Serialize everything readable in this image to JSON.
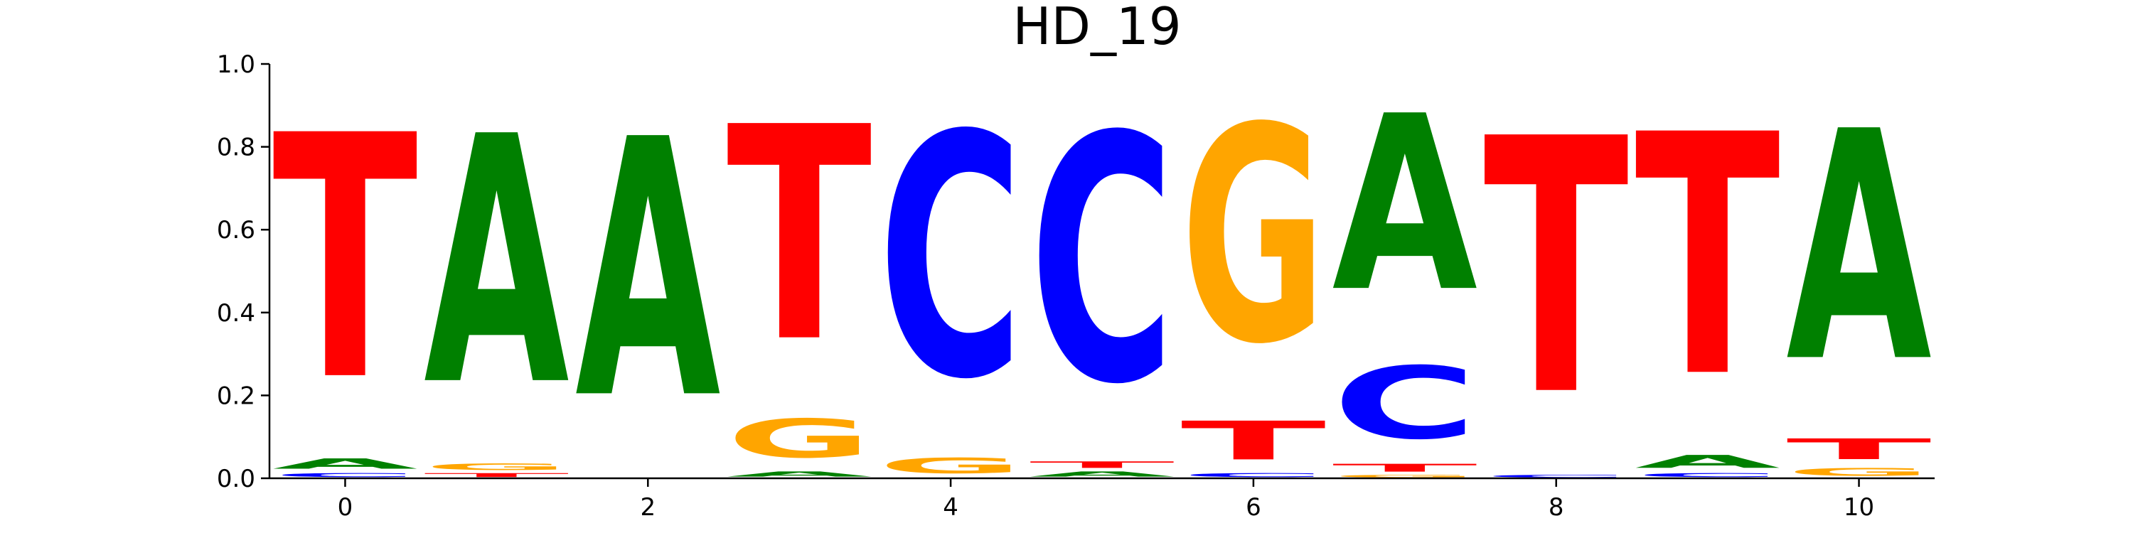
{
  "chart_data": {
    "type": "sequence-logo",
    "title": "HD_19",
    "xlim": [
      -0.5,
      10.5
    ],
    "ylim": [
      0.0,
      1.0
    ],
    "x_ticks": [
      "0",
      "2",
      "4",
      "6",
      "8",
      "10"
    ],
    "y_ticks": [
      "0.0",
      "0.2",
      "0.4",
      "0.6",
      "0.8",
      "1.0"
    ],
    "alphabet_colors": {
      "A": "#008000",
      "C": "#0000ff",
      "G": "#ffa500",
      "T": "#ff0000"
    },
    "positions": [
      {
        "x": 0,
        "stack": [
          {
            "l": "C",
            "v": 0.015
          },
          {
            "l": "A",
            "v": 0.04
          },
          {
            "l": "T",
            "v": 0.945
          }
        ]
      },
      {
        "x": 1,
        "stack": [
          {
            "l": "T",
            "v": 0.015
          },
          {
            "l": "G",
            "v": 0.025
          },
          {
            "l": "A",
            "v": 0.96
          }
        ]
      },
      {
        "x": 2,
        "stack": [
          {
            "l": "A",
            "v": 1.0
          }
        ]
      },
      {
        "x": 3,
        "stack": [
          {
            "l": "A",
            "v": 0.02
          },
          {
            "l": "G",
            "v": 0.15
          },
          {
            "l": "T",
            "v": 0.83
          }
        ]
      },
      {
        "x": 4,
        "stack": [
          {
            "l": "G",
            "v": 0.06
          },
          {
            "l": "C",
            "v": 0.94
          }
        ]
      },
      {
        "x": 5,
        "stack": [
          {
            "l": "A",
            "v": 0.02
          },
          {
            "l": "T",
            "v": 0.025
          },
          {
            "l": "C",
            "v": 0.955
          }
        ]
      },
      {
        "x": 6,
        "stack": [
          {
            "l": "C",
            "v": 0.015
          },
          {
            "l": "T",
            "v": 0.15
          },
          {
            "l": "G",
            "v": 0.835
          }
        ]
      },
      {
        "x": 7,
        "stack": [
          {
            "l": "G",
            "v": 0.01
          },
          {
            "l": "T",
            "v": 0.03
          },
          {
            "l": "C",
            "v": 0.28
          },
          {
            "l": "A",
            "v": 0.68
          }
        ]
      },
      {
        "x": 8,
        "stack": [
          {
            "l": "C",
            "v": 0.01
          },
          {
            "l": "T",
            "v": 0.99
          }
        ]
      },
      {
        "x": 9,
        "stack": [
          {
            "l": "C",
            "v": 0.015
          },
          {
            "l": "A",
            "v": 0.05
          },
          {
            "l": "T",
            "v": 0.935
          }
        ]
      },
      {
        "x": 10,
        "stack": [
          {
            "l": "G",
            "v": 0.03
          },
          {
            "l": "T",
            "v": 0.08
          },
          {
            "l": "A",
            "v": 0.89
          }
        ]
      }
    ]
  }
}
